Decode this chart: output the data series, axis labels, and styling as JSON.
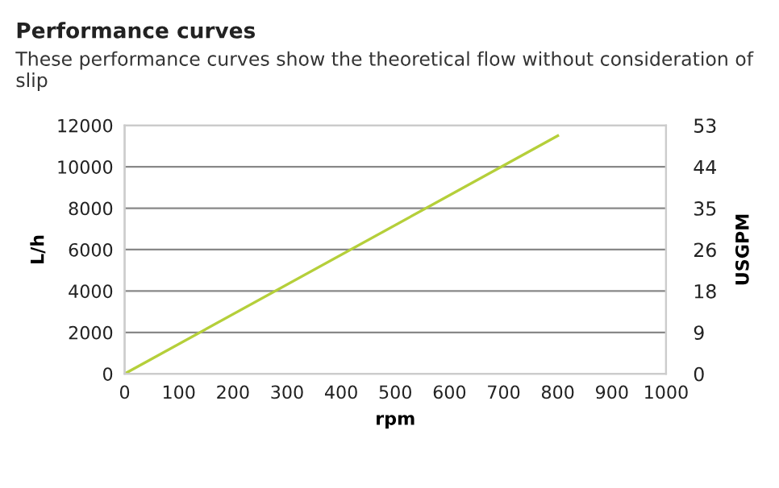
{
  "chart_data": {
    "type": "line",
    "title": "Performance curves",
    "subtitle": "These performance curves show the theoretical flow without consideration of slip",
    "xlabel": "rpm",
    "ylabel": "L/h",
    "y2label": "USGPM",
    "series": [
      {
        "x": [
          0,
          800
        ],
        "values": [
          0,
          11500
        ],
        "color": "#b5cf3a"
      }
    ],
    "xlim": [
      0,
      1000
    ],
    "xticks": [
      0,
      100,
      200,
      300,
      400,
      500,
      600,
      700,
      800,
      900,
      1000
    ],
    "ylim": [
      0,
      12000
    ],
    "yticks": [
      0,
      2000,
      4000,
      6000,
      8000,
      10000,
      12000
    ],
    "y2lim": [
      0,
      52.83
    ],
    "y2ticks": [
      0,
      {
        "value": 8.81,
        "label": "9"
      },
      {
        "value": 17.61,
        "label": "18"
      },
      {
        "value": 26.42,
        "label": "26"
      },
      {
        "value": 35.22,
        "label": "35"
      },
      {
        "value": 44.03,
        "label": "44"
      },
      {
        "value": 52.83,
        "label": "53"
      }
    ],
    "grid": "y",
    "legend": false,
    "marker": "none",
    "line_style": "solid"
  }
}
